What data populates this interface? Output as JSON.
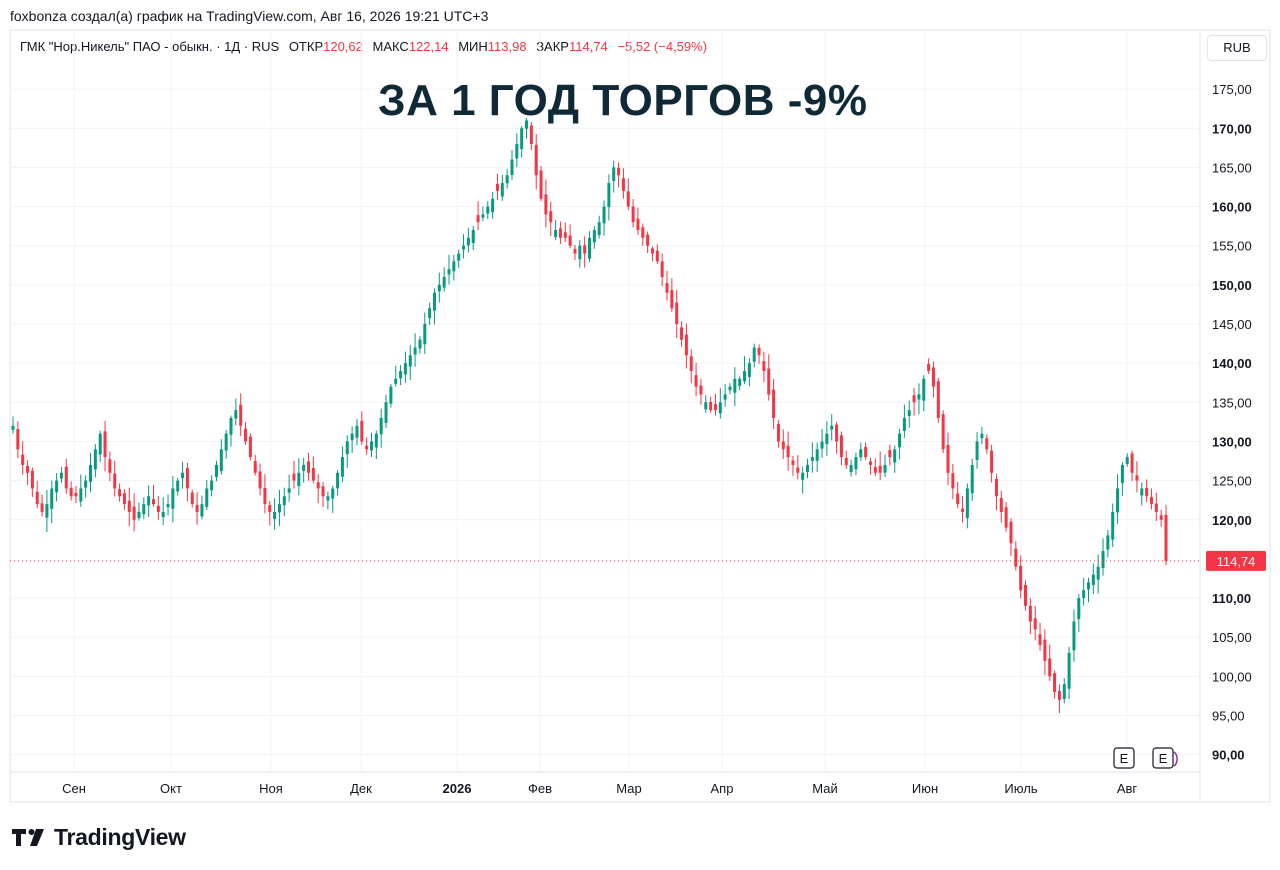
{
  "header": {
    "published_by": "foxbonza создал(а) график на TradingView.com, Авг 16, 2026 19:21 UTC+3"
  },
  "legend": {
    "symbol": "ГМК \"Нор.Никель\" ПАО - обыкн. · 1Д · RUS",
    "open_label": "ОТКР",
    "open_value": "120,62",
    "high_label": "МАКС",
    "high_value": "122,14",
    "low_label": "МИН",
    "low_value": "113,98",
    "close_label": "ЗАКР",
    "close_value": "114,74",
    "change": "−5,52 (−4,59%)"
  },
  "headline": "ЗА 1 ГОД ТОРГОВ -9%",
  "currency_button": "RUB",
  "events": [
    {
      "label": "E"
    },
    {
      "label": "E"
    }
  ],
  "brand": {
    "name": "TradingView"
  },
  "colors": {
    "up": "#089981",
    "down": "#f23645",
    "grid": "#f0f3fa",
    "text": "#131722",
    "headline": "#0f2a36"
  },
  "chart_data": {
    "type": "candlestick",
    "title": "ЗА 1 ГОД ТОРГОВ -9%",
    "currency": "RUB",
    "interval": "1Д",
    "ylim": [
      90,
      177
    ],
    "y_ticks": [
      "175,00",
      "170,00",
      "165,00",
      "160,00",
      "155,00",
      "150,00",
      "145,00",
      "140,00",
      "135,00",
      "130,00",
      "125,00",
      "120,00",
      "110,00",
      "105,00",
      "100,00",
      "95,00",
      "90,00"
    ],
    "x_ticks": [
      "Сен",
      "Окт",
      "Ноя",
      "Дек",
      "2026",
      "Фев",
      "Мар",
      "Апр",
      "Май",
      "Июн",
      "Июль",
      "Авг"
    ],
    "last_price": 114.74,
    "last_price_label": "114,74",
    "grid": true,
    "closes": [
      132,
      129,
      127,
      126,
      124,
      122,
      121,
      122,
      124,
      125,
      126,
      124,
      123,
      123,
      124,
      125,
      127,
      129,
      131,
      128,
      126,
      124,
      123,
      122,
      121,
      120,
      121,
      122,
      123,
      122,
      121,
      121,
      122,
      124,
      125,
      126,
      124,
      122,
      121,
      122,
      124,
      125,
      127,
      129,
      131,
      133,
      134,
      132,
      130,
      128,
      126,
      124,
      122,
      121,
      121,
      122,
      123,
      124,
      125,
      126,
      127,
      126,
      125,
      124,
      123,
      123,
      124,
      126,
      128,
      130,
      131,
      132,
      130,
      129,
      130,
      131,
      133,
      135,
      137,
      138,
      139,
      140,
      141,
      142,
      143,
      145,
      147,
      149,
      150,
      151,
      152,
      153,
      154,
      155,
      156,
      157,
      158,
      159,
      160,
      161,
      162,
      163,
      164,
      166,
      168,
      170,
      171,
      168,
      164,
      161,
      159,
      158,
      157,
      156,
      156,
      155,
      154,
      155,
      154,
      156,
      157,
      158,
      160,
      163,
      165,
      164,
      162,
      160,
      158,
      157,
      156,
      155,
      154,
      153,
      151,
      149,
      147,
      145,
      143,
      141,
      139,
      137,
      136,
      135,
      134,
      134,
      135,
      136,
      137,
      138,
      138,
      139,
      140,
      142,
      141,
      139,
      136,
      133,
      130,
      129,
      128,
      127,
      126,
      126,
      127,
      128,
      129,
      130,
      131,
      132,
      130,
      128,
      127,
      127,
      128,
      129,
      128,
      127,
      126,
      126,
      127,
      128,
      129,
      131,
      133,
      134,
      135,
      136,
      138,
      139,
      137,
      133,
      129,
      126,
      124,
      122,
      121,
      124,
      127,
      130,
      131,
      129,
      126,
      123,
      121,
      119,
      117,
      114,
      111,
      109,
      107,
      106,
      104,
      102,
      100,
      98,
      97,
      99,
      103,
      107,
      110,
      111,
      112,
      113,
      114,
      116,
      118,
      121,
      124,
      127,
      128,
      126,
      125,
      124,
      123,
      122,
      121,
      120,
      114.74
    ]
  }
}
